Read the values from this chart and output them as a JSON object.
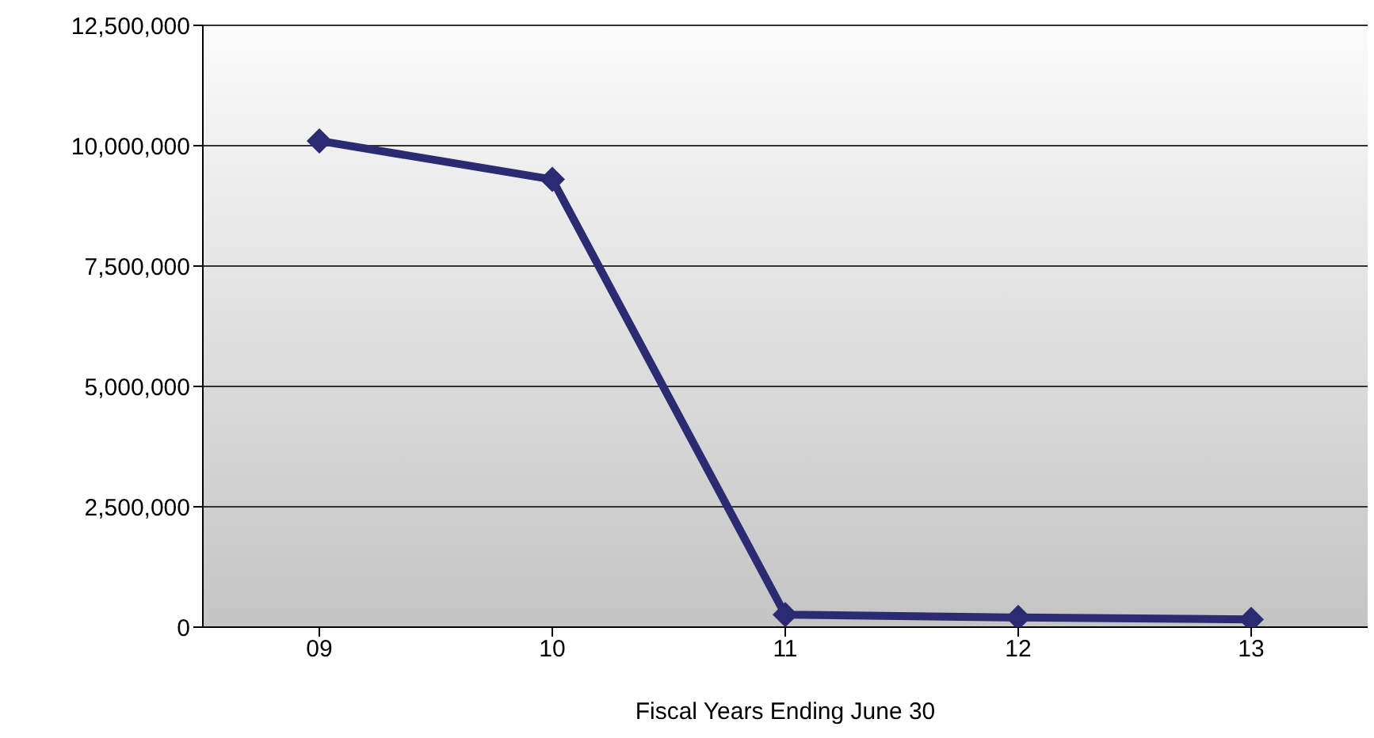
{
  "chart_data": {
    "type": "line",
    "xlabel": "Fiscal Years Ending June 30",
    "categories": [
      "09",
      "10",
      "11",
      "12",
      "13"
    ],
    "series": [
      {
        "color": "#2b2b72",
        "values": [
          10100000,
          9300000,
          260000,
          200000,
          160000
        ]
      }
    ],
    "ylim": [
      0,
      12500000
    ],
    "yticks": [
      {
        "value": 0,
        "label": "0"
      },
      {
        "value": 2500000,
        "label": "2,500,000"
      },
      {
        "value": 5000000,
        "label": "5,000,000"
      },
      {
        "value": 7500000,
        "label": "7,500,000"
      },
      {
        "value": 10000000,
        "label": "10,000,000"
      },
      {
        "value": 12500000,
        "label": "12,500,000"
      }
    ],
    "grid": "y",
    "marker": "diamond",
    "line_style": "solid",
    "legend": false
  }
}
